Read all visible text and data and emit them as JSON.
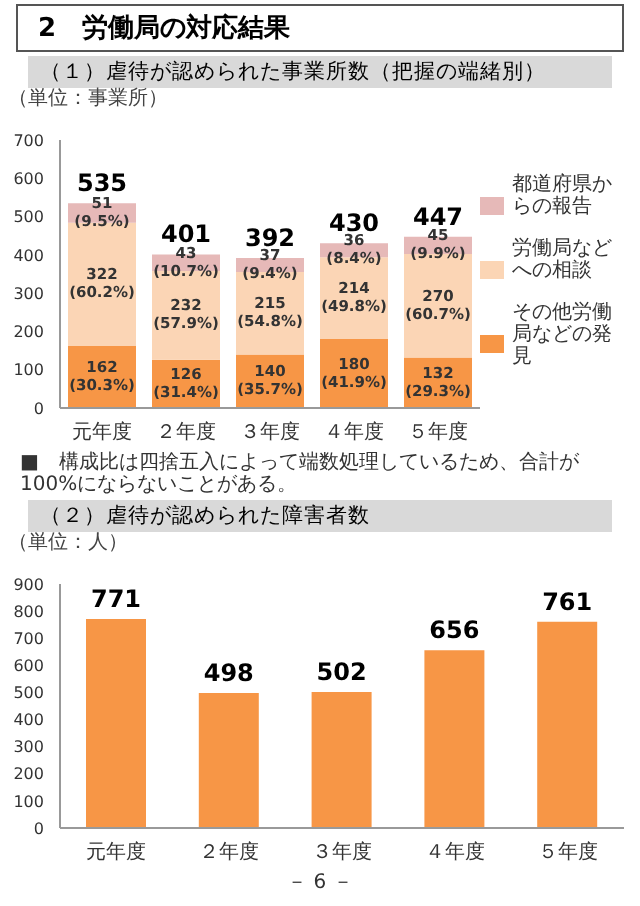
{
  "chart_data": [
    {
      "type": "bar",
      "title": "（１）虐待が認められた事業所数（把握の端緒別）",
      "ylabel": "（単位：事業所）",
      "annotations": [
        "2　労働局の対応結果",
        "■　構成比は四捨五入によって端数処理しているため、合計が100%にならないことがある。"
      ],
      "categories": [
        "元年度",
        "２年度",
        "３年度",
        "４年度",
        "５年度"
      ],
      "stacked": true,
      "series": [
        {
          "name": "その他労働局などの発見",
          "color": "#f79646",
          "values": [
            162,
            126,
            140,
            180,
            132
          ],
          "value_labels": [
            "162 (30.3%)",
            "126 (31.4%)",
            "140 (35.7%)",
            "180 (41.9%)",
            "132 (29.3%)"
          ]
        },
        {
          "name": "労働局などへの相談",
          "color": "#fbd5b5",
          "values": [
            322,
            232,
            215,
            214,
            270
          ],
          "value_labels": [
            "322 (60.2%)",
            "232 (57.9%)",
            "215 (54.8%)",
            "214 (49.8%)",
            "270 (60.7%)"
          ]
        },
        {
          "name": "都道府県からの報告",
          "color": "#e6b9b8",
          "values": [
            51,
            43,
            37,
            36,
            45
          ],
          "value_labels": [
            "51 (9.5%)",
            "43 (10.7%)",
            "37 (9.4%)",
            "36 (8.4%)",
            "45 (9.9%)"
          ]
        }
      ],
      "totals": [
        "535",
        "401",
        "392",
        "430",
        "447"
      ],
      "ylim": [
        0,
        700
      ],
      "yticks": [
        0,
        100,
        200,
        300,
        400,
        500,
        600,
        700
      ],
      "grid": false,
      "legend": "right"
    },
    {
      "type": "bar",
      "title": "（２）虐待が認められた障害者数",
      "ylabel": "（単位：人）",
      "annotations": [
        "－ 6 －"
      ],
      "categories": [
        "元年度",
        "２年度",
        "３年度",
        "４年度",
        "５年度"
      ],
      "values": [
        771,
        498,
        502,
        656,
        761
      ],
      "color": "#f79646",
      "data_labels": true,
      "ylim": [
        0,
        900
      ],
      "yticks": [
        0,
        100,
        200,
        300,
        400,
        500,
        600,
        700,
        800,
        900
      ],
      "grid": false
    }
  ]
}
